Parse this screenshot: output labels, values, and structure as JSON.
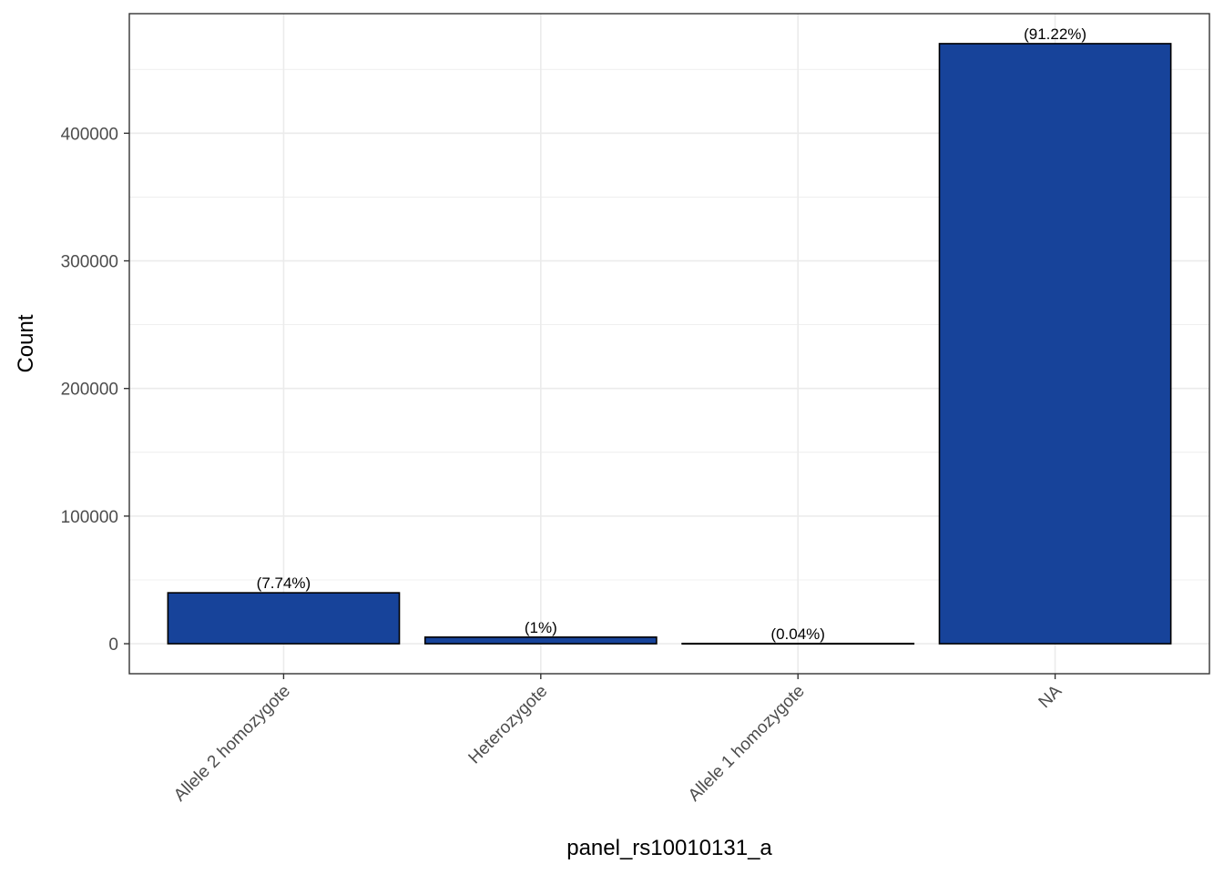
{
  "chart_data": {
    "type": "bar",
    "categories": [
      "Allele 2 homozygote",
      "Heterozygote",
      "Allele 1 homozygote",
      "NA"
    ],
    "values": [
      39900,
      5150,
      206,
      470200
    ],
    "data_labels": [
      "(7.74%)",
      "(1%)",
      "(0.04%)",
      "(91.22%)"
    ],
    "xlabel": "panel_rs10010131_a",
    "ylabel": "Count",
    "ylim": [
      -23500,
      493700
    ],
    "yticks": [
      0,
      100000,
      200000,
      300000,
      400000
    ],
    "ytick_labels": [
      "0",
      "100000",
      "200000",
      "300000",
      "400000"
    ],
    "grid": true,
    "x_tick_rotation_deg": 45,
    "bar_fill": "#17439A",
    "bar_stroke": "#000000",
    "grid_color": "#EBEBEB",
    "panel_border": "#333333"
  }
}
